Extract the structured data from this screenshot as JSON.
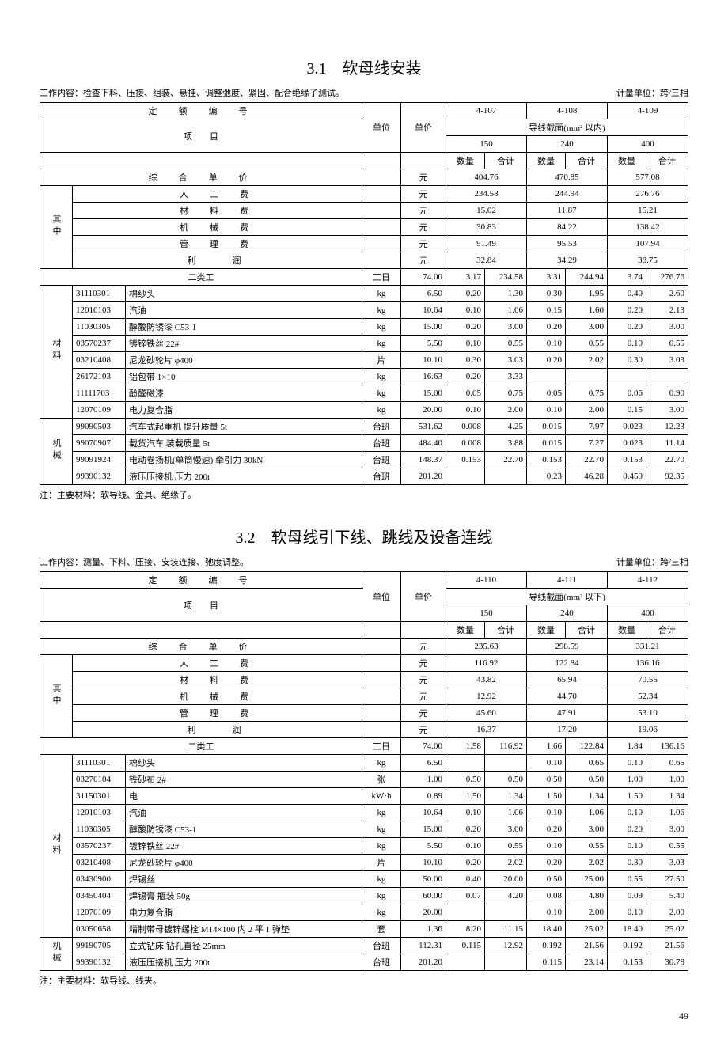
{
  "page_number": "49",
  "section1": {
    "title": "3.1　软母线安装",
    "work": "工作内容：检查下料、压接、组装、悬挂、调整弛度、紧固、配合绝缘子测试。",
    "unit": "计量单位：跨/三相",
    "note": "注：主要材料：软导线、金具、绝缘子。",
    "quota_label": "定　额　编　号",
    "item_label": "项　　目",
    "unit_col": "单位",
    "price_col": "单价",
    "group_header": "导线截面(mm² 以内)",
    "codes": [
      "4-107",
      "4-108",
      "4-109"
    ],
    "sizes": [
      "150",
      "240",
      "400"
    ],
    "qty_label": "数量",
    "sum_label": "合计",
    "comp_price": "综　合　单　价",
    "comp_unit": "元",
    "comp_vals": [
      "404.76",
      "470.85",
      "577.08"
    ],
    "qizhong": "其中",
    "fee_rows": [
      {
        "n": "人　工　费",
        "u": "元",
        "v": [
          "234.58",
          "244.94",
          "276.76"
        ]
      },
      {
        "n": "材　料　费",
        "u": "元",
        "v": [
          "15.02",
          "11.87",
          "15.21"
        ]
      },
      {
        "n": "机　械　费",
        "u": "元",
        "v": [
          "30.83",
          "84.22",
          "138.42"
        ]
      },
      {
        "n": "管　理　费",
        "u": "元",
        "v": [
          "91.49",
          "95.53",
          "107.94"
        ]
      },
      {
        "n": "利　　润",
        "u": "元",
        "v": [
          "32.84",
          "34.29",
          "38.75"
        ]
      }
    ],
    "labor": {
      "n": "二类工",
      "u": "工日",
      "p": "74.00",
      "c": [
        [
          "3.17",
          "234.58"
        ],
        [
          "3.31",
          "244.94"
        ],
        [
          "3.74",
          "276.76"
        ]
      ]
    },
    "mat_label": "材料",
    "materials": [
      {
        "code": "31110301",
        "n": "棉纱头",
        "u": "kg",
        "p": "6.50",
        "c": [
          [
            "0.20",
            "1.30"
          ],
          [
            "0.30",
            "1.95"
          ],
          [
            "0.40",
            "2.60"
          ]
        ]
      },
      {
        "code": "12010103",
        "n": "汽油",
        "u": "kg",
        "p": "10.64",
        "c": [
          [
            "0.10",
            "1.06"
          ],
          [
            "0.15",
            "1.60"
          ],
          [
            "0.20",
            "2.13"
          ]
        ]
      },
      {
        "code": "11030305",
        "n": "醇酸防锈漆 C53-1",
        "u": "kg",
        "p": "15.00",
        "c": [
          [
            "0.20",
            "3.00"
          ],
          [
            "0.20",
            "3.00"
          ],
          [
            "0.20",
            "3.00"
          ]
        ]
      },
      {
        "code": "03570237",
        "n": "镀锌铁丝 22#",
        "u": "kg",
        "p": "5.50",
        "c": [
          [
            "0.10",
            "0.55"
          ],
          [
            "0.10",
            "0.55"
          ],
          [
            "0.10",
            "0.55"
          ]
        ]
      },
      {
        "code": "03210408",
        "n": "尼龙砂轮片 φ400",
        "u": "片",
        "p": "10.10",
        "c": [
          [
            "0.30",
            "3.03"
          ],
          [
            "0.20",
            "2.02"
          ],
          [
            "0.30",
            "3.03"
          ]
        ]
      },
      {
        "code": "26172103",
        "n": "铝包带 1×10",
        "u": "kg",
        "p": "16.63",
        "c": [
          [
            "0.20",
            "3.33"
          ],
          [
            "",
            ""
          ],
          [
            "",
            ""
          ]
        ]
      },
      {
        "code": "11111703",
        "n": "酚醛磁漆",
        "u": "kg",
        "p": "15.00",
        "c": [
          [
            "0.05",
            "0.75"
          ],
          [
            "0.05",
            "0.75"
          ],
          [
            "0.06",
            "0.90"
          ]
        ]
      },
      {
        "code": "12070109",
        "n": "电力复合脂",
        "u": "kg",
        "p": "20.00",
        "c": [
          [
            "0.10",
            "2.00"
          ],
          [
            "0.10",
            "2.00"
          ],
          [
            "0.15",
            "3.00"
          ]
        ]
      }
    ],
    "mach_label": "机械",
    "machines": [
      {
        "code": "99090503",
        "n": "汽车式起重机 提升质量 5t",
        "u": "台班",
        "p": "531.62",
        "c": [
          [
            "0.008",
            "4.25"
          ],
          [
            "0.015",
            "7.97"
          ],
          [
            "0.023",
            "12.23"
          ]
        ]
      },
      {
        "code": "99070907",
        "n": "载货汽车 装载质量 5t",
        "u": "台班",
        "p": "484.40",
        "c": [
          [
            "0.008",
            "3.88"
          ],
          [
            "0.015",
            "7.27"
          ],
          [
            "0.023",
            "11.14"
          ]
        ]
      },
      {
        "code": "99091924",
        "n": "电动卷扬机(单筒慢速) 牵引力 30kN",
        "u": "台班",
        "p": "148.37",
        "c": [
          [
            "0.153",
            "22.70"
          ],
          [
            "0.153",
            "22.70"
          ],
          [
            "0.153",
            "22.70"
          ]
        ]
      },
      {
        "code": "99390132",
        "n": "液压压接机 压力 200t",
        "u": "台班",
        "p": "201.20",
        "c": [
          [
            "",
            ""
          ],
          [
            "0.23",
            "46.28"
          ],
          [
            "0.459",
            "92.35"
          ]
        ]
      }
    ]
  },
  "section2": {
    "title": "3.2　软母线引下线、跳线及设备连线",
    "work": "工作内容：测量、下料、压接、安装连接、弛度调整。",
    "unit": "计量单位：跨/三相",
    "note": "注：主要材料：软导线、线夹。",
    "group_header": "导线截面(mm² 以下)",
    "codes": [
      "4-110",
      "4-111",
      "4-112"
    ],
    "sizes": [
      "150",
      "240",
      "400"
    ],
    "comp_vals": [
      "235.63",
      "298.59",
      "331.21"
    ],
    "fee_rows": [
      {
        "n": "人　工　费",
        "u": "元",
        "v": [
          "116.92",
          "122.84",
          "136.16"
        ]
      },
      {
        "n": "材　料　费",
        "u": "元",
        "v": [
          "43.82",
          "65.94",
          "70.55"
        ]
      },
      {
        "n": "机　械　费",
        "u": "元",
        "v": [
          "12.92",
          "44.70",
          "52.34"
        ]
      },
      {
        "n": "管　理　费",
        "u": "元",
        "v": [
          "45.60",
          "47.91",
          "53.10"
        ]
      },
      {
        "n": "利　　润",
        "u": "元",
        "v": [
          "16.37",
          "17.20",
          "19.06"
        ]
      }
    ],
    "labor": {
      "n": "二类工",
      "u": "工日",
      "p": "74.00",
      "c": [
        [
          "1.58",
          "116.92"
        ],
        [
          "1.66",
          "122.84"
        ],
        [
          "1.84",
          "136.16"
        ]
      ]
    },
    "materials": [
      {
        "code": "31110301",
        "n": "棉纱头",
        "u": "kg",
        "p": "6.50",
        "c": [
          [
            "",
            ""
          ],
          [
            "0.10",
            "0.65"
          ],
          [
            "0.10",
            "0.65"
          ]
        ]
      },
      {
        "code": "03270104",
        "n": "铁砂布 2#",
        "u": "张",
        "p": "1.00",
        "c": [
          [
            "0.50",
            "0.50"
          ],
          [
            "0.50",
            "0.50"
          ],
          [
            "1.00",
            "1.00"
          ]
        ]
      },
      {
        "code": "31150301",
        "n": "电",
        "u": "kW·h",
        "p": "0.89",
        "c": [
          [
            "1.50",
            "1.34"
          ],
          [
            "1.50",
            "1.34"
          ],
          [
            "1.50",
            "1.34"
          ]
        ]
      },
      {
        "code": "12010103",
        "n": "汽油",
        "u": "kg",
        "p": "10.64",
        "c": [
          [
            "0.10",
            "1.06"
          ],
          [
            "0.10",
            "1.06"
          ],
          [
            "0.10",
            "1.06"
          ]
        ]
      },
      {
        "code": "11030305",
        "n": "醇酸防锈漆 C53-1",
        "u": "kg",
        "p": "15.00",
        "c": [
          [
            "0.20",
            "3.00"
          ],
          [
            "0.20",
            "3.00"
          ],
          [
            "0.20",
            "3.00"
          ]
        ]
      },
      {
        "code": "03570237",
        "n": "镀锌铁丝 22#",
        "u": "kg",
        "p": "5.50",
        "c": [
          [
            "0.10",
            "0.55"
          ],
          [
            "0.10",
            "0.55"
          ],
          [
            "0.10",
            "0.55"
          ]
        ]
      },
      {
        "code": "03210408",
        "n": "尼龙砂轮片 φ400",
        "u": "片",
        "p": "10.10",
        "c": [
          [
            "0.20",
            "2.02"
          ],
          [
            "0.20",
            "2.02"
          ],
          [
            "0.30",
            "3.03"
          ]
        ]
      },
      {
        "code": "03430900",
        "n": "焊锡丝",
        "u": "kg",
        "p": "50.00",
        "c": [
          [
            "0.40",
            "20.00"
          ],
          [
            "0.50",
            "25.00"
          ],
          [
            "0.55",
            "27.50"
          ]
        ]
      },
      {
        "code": "03450404",
        "n": "焊锡膏 瓶装 50g",
        "u": "kg",
        "p": "60.00",
        "c": [
          [
            "0.07",
            "4.20"
          ],
          [
            "0.08",
            "4.80"
          ],
          [
            "0.09",
            "5.40"
          ]
        ]
      },
      {
        "code": "12070109",
        "n": "电力复合脂",
        "u": "kg",
        "p": "20.00",
        "c": [
          [
            "",
            ""
          ],
          [
            "0.10",
            "2.00"
          ],
          [
            "0.10",
            "2.00"
          ]
        ]
      },
      {
        "code": "03050658",
        "n": "精制带母镀锌螺栓 M14×100 内 2 平 1 弹垫",
        "u": "套",
        "p": "1.36",
        "c": [
          [
            "8.20",
            "11.15"
          ],
          [
            "18.40",
            "25.02"
          ],
          [
            "18.40",
            "25.02"
          ]
        ]
      }
    ],
    "machines": [
      {
        "code": "99190705",
        "n": "立式钻床 钻孔直径 25mm",
        "u": "台班",
        "p": "112.31",
        "c": [
          [
            "0.115",
            "12.92"
          ],
          [
            "0.192",
            "21.56"
          ],
          [
            "0.192",
            "21.56"
          ]
        ]
      },
      {
        "code": "99390132",
        "n": "液压压接机 压力 200t",
        "u": "台班",
        "p": "201.20",
        "c": [
          [
            "",
            ""
          ],
          [
            "0.115",
            "23.14"
          ],
          [
            "0.153",
            "30.78"
          ]
        ]
      }
    ]
  }
}
